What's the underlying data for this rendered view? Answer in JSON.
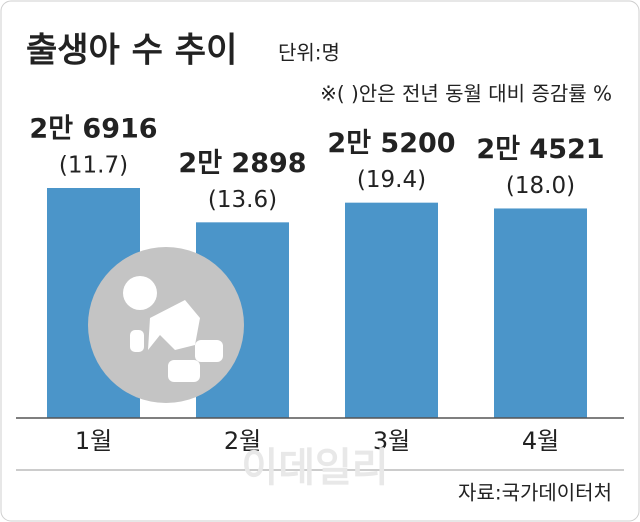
{
  "chart_data": {
    "type": "bar",
    "title": "출생아 수 추이",
    "subtitle": "단위:명",
    "note": "※(  )안은 전년 동월 대비 증감률 %",
    "categories": [
      "1월",
      "2월",
      "3월",
      "4월"
    ],
    "values": [
      26916,
      22898,
      25200,
      24521
    ],
    "value_labels": [
      "2만 6916",
      "2만 2898",
      "2만 5200",
      "2만 4521"
    ],
    "annotations": [
      "(11.7)",
      "(13.6)",
      "(19.4)",
      "(18.0)"
    ],
    "color": "#4b95c9",
    "watermark": "이데일리",
    "source": "자료:국가데이터처"
  }
}
